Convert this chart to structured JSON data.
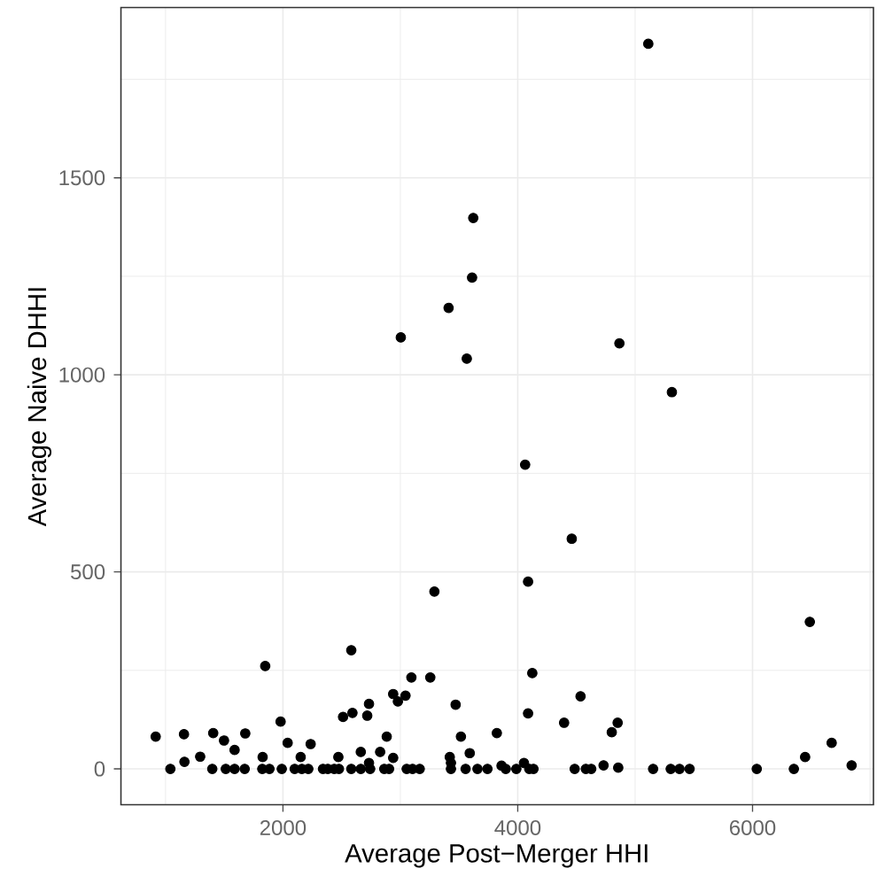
{
  "chart_data": {
    "type": "scatter",
    "xlabel": "Average Post−Merger HHI",
    "ylabel": "Average Naive DHHI",
    "color": "#000000",
    "grid": true,
    "xlim": [
      620,
      7030
    ],
    "ylim": [
      -91,
      1932
    ],
    "xticks": [
      {
        "value": 1000,
        "label": null
      },
      2000,
      {
        "value": 3000,
        "label": null
      },
      4000,
      {
        "value": 5000,
        "label": null
      },
      6000,
      {
        "value": 7000,
        "label": null
      }
    ],
    "yticks": [
      0,
      {
        "value": 250,
        "label": null
      },
      500,
      {
        "value": 750,
        "label": null
      },
      1000,
      {
        "value": 1250,
        "label": null
      },
      1500,
      {
        "value": 1750,
        "label": null
      }
    ],
    "x": [
      5112,
      3621,
      3611,
      3411,
      3004,
      3566,
      4866,
      5313,
      4063,
      4460,
      4088,
      3290,
      6488,
      2582,
      1849,
      4124,
      3094,
      3255,
      4535,
      3471,
      2939,
      3044,
      2979,
      2733,
      2718,
      2592,
      2512,
      4088,
      4395,
      4851,
      4801,
      1980,
      3822,
      3516,
      2884,
      916,
      1157,
      1406,
      1498,
      1679,
      1588,
      2040,
      2236,
      2663,
      2828,
      3591,
      6674,
      6448,
      6844,
      1295,
      1161,
      1827,
      3421,
      3431,
      2939,
      2733,
      2472,
      2151,
      4731,
      4856,
      1041,
      1398,
      1513,
      1588,
      1674,
      1824,
      1885,
      1990,
      2100,
      2161,
      2216,
      2341,
      2382,
      2437,
      2477,
      2582,
      2663,
      2743,
      2863,
      2904,
      3054,
      3104,
      3165,
      3431,
      3556,
      3657,
      3742,
      3862,
      3898,
      3988,
      4053,
      4098,
      4134,
      4485,
      4580,
      4626,
      5153,
      5303,
      5378,
      5464,
      6036,
      6352
    ],
    "values": [
      1840,
      1398,
      1247,
      1170,
      1095,
      1041,
      1080,
      956,
      772,
      584,
      475,
      450,
      373,
      301,
      261,
      243,
      232,
      232,
      184,
      163,
      190,
      186,
      171,
      165,
      135,
      142,
      132,
      141,
      117,
      117,
      93,
      120,
      91,
      82,
      82,
      82,
      88,
      91,
      72,
      90,
      48,
      66,
      63,
      43,
      43,
      40,
      66,
      30,
      9,
      31,
      18,
      30,
      30,
      15,
      28,
      15,
      30,
      30,
      9,
      3,
      0,
      0,
      0,
      0,
      0,
      0,
      0,
      0,
      0,
      0,
      0,
      0,
      0,
      0,
      0,
      0,
      0,
      0,
      0,
      0,
      0,
      0,
      0,
      0,
      0,
      0,
      0,
      8,
      0,
      0,
      15,
      0,
      0,
      0,
      0,
      0,
      0,
      0,
      0,
      0,
      0,
      0
    ]
  }
}
